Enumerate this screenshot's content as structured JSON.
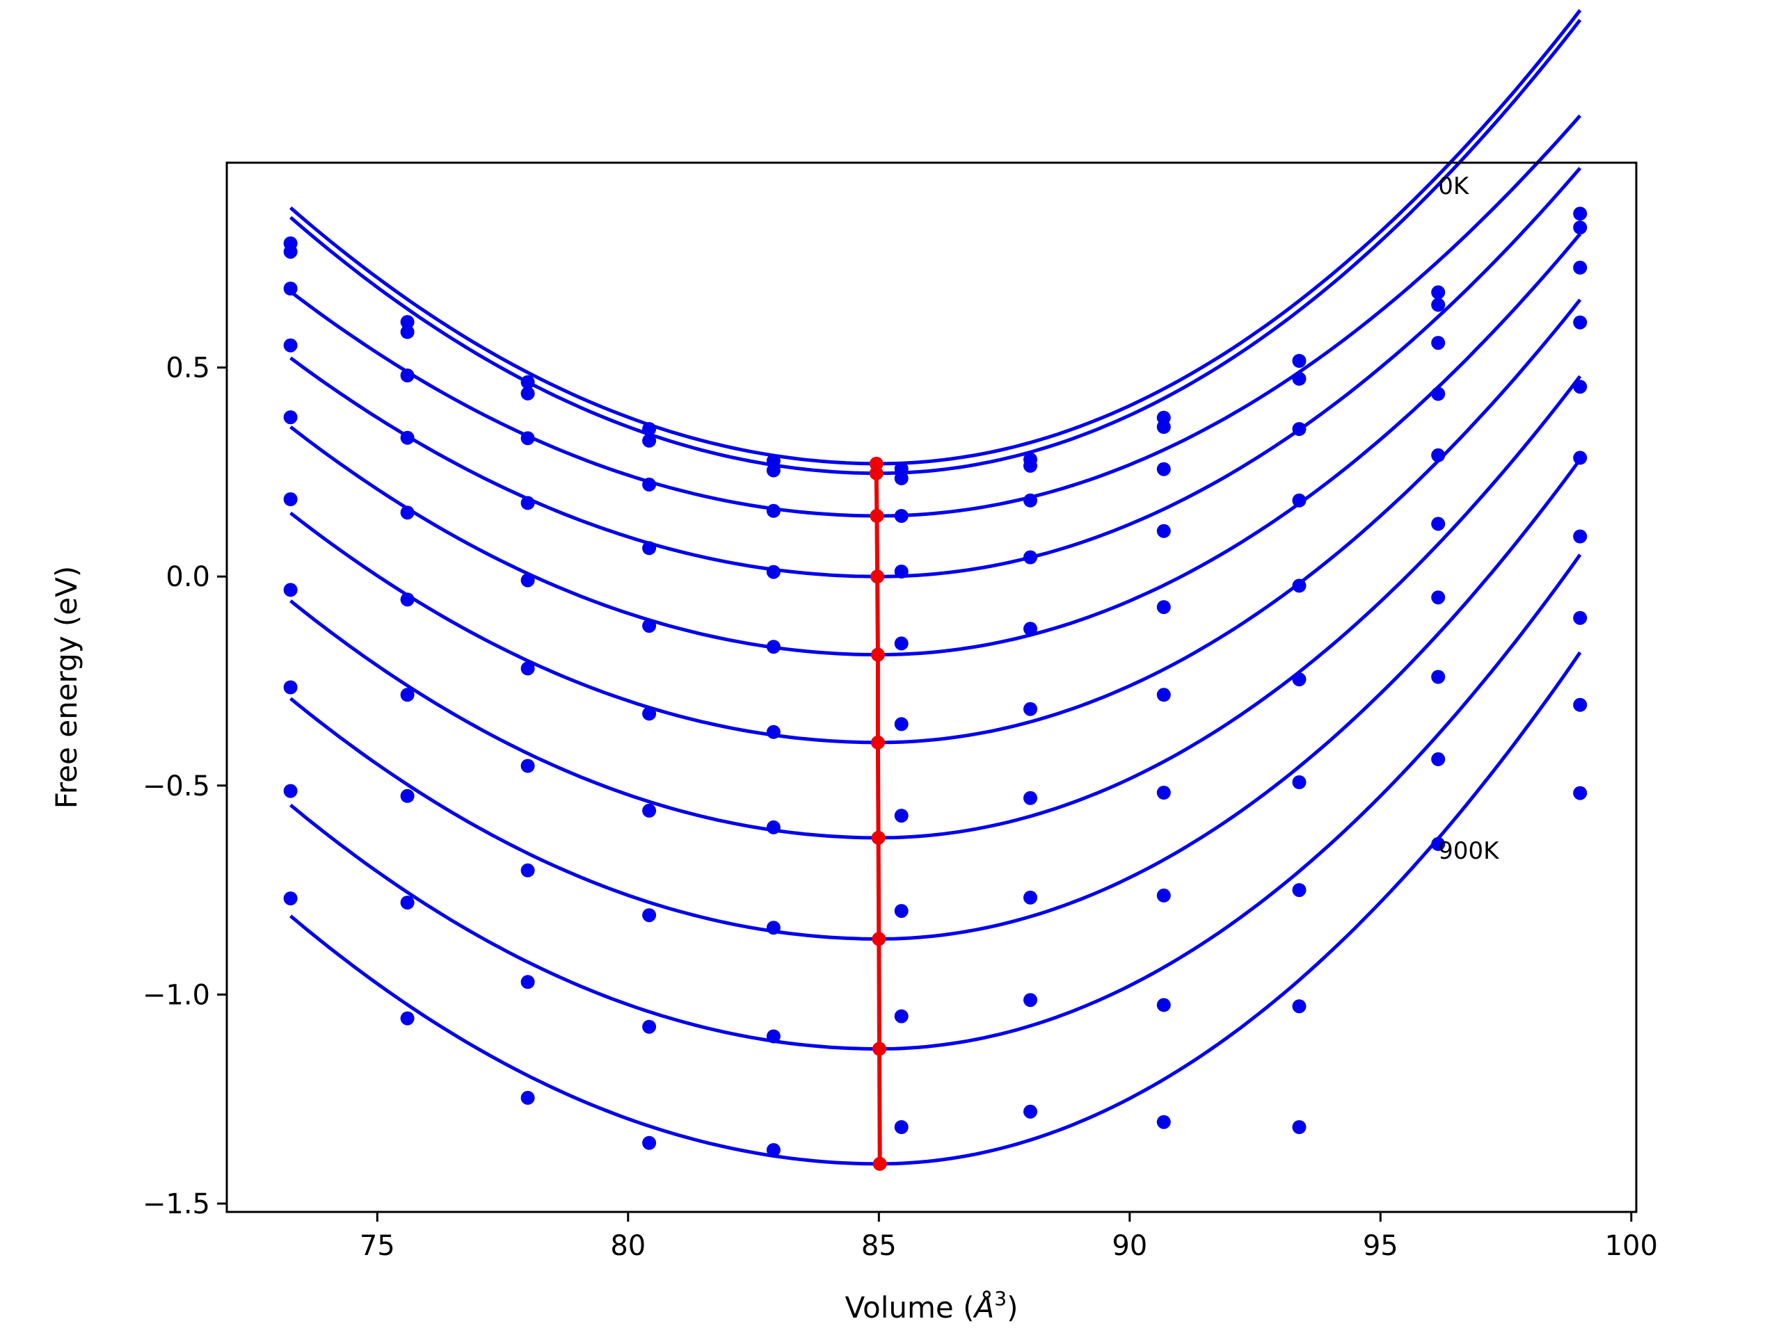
{
  "chart_data": {
    "type": "scatter",
    "title": "",
    "xlabel": "Volume ($\\AA^3$)",
    "xlabel_text": "Volume (",
    "xlabel_symbol": "Å",
    "xlabel_sup": "3",
    "xlabel_end": ")",
    "ylabel": "Free energy (eV)",
    "xlim": [
      72.0,
      100.1
    ],
    "ylim": [
      -1.52,
      0.99
    ],
    "xticks": [
      75,
      80,
      85,
      90,
      95,
      100
    ],
    "xtick_labels": [
      "75",
      "80",
      "85",
      "90",
      "95",
      "100"
    ],
    "yticks": [
      0.5,
      0.0,
      -0.5,
      -1.0,
      -1.5
    ],
    "ytick_labels": [
      "0.5",
      "0.0",
      "−0.5",
      "−1.0",
      "−1.5"
    ],
    "grid": false,
    "colors": {
      "data": "#0000ee",
      "minimum": "#ee0000"
    },
    "annotations": [
      {
        "text": "0K",
        "x": 96.15,
        "y": 0.935
      },
      {
        "text": "900K",
        "x": 96.15,
        "y": -0.655
      }
    ],
    "x": [
      73.27,
      75.6,
      78.0,
      80.42,
      82.9,
      85.45,
      88.02,
      90.68,
      93.38,
      96.15,
      98.98
    ],
    "series": [
      {
        "values": [
          0.797,
          0.609,
          0.465,
          0.353,
          0.277,
          0.258,
          0.28,
          0.38,
          0.516,
          0.68,
          0.868
        ]
      },
      {
        "values": [
          0.777,
          0.585,
          0.438,
          0.325,
          0.254,
          0.235,
          0.265,
          0.358,
          0.473,
          0.65,
          0.835
        ]
      },
      {
        "values": [
          0.689,
          0.481,
          0.331,
          0.22,
          0.157,
          0.145,
          0.182,
          0.257,
          0.353,
          0.559,
          0.739
        ]
      },
      {
        "values": [
          0.553,
          0.332,
          0.176,
          0.068,
          0.011,
          0.012,
          0.046,
          0.109,
          0.182,
          0.437,
          0.608
        ]
      },
      {
        "values": [
          0.381,
          0.153,
          -0.009,
          -0.118,
          -0.168,
          -0.16,
          -0.125,
          -0.073,
          -0.022,
          0.29,
          0.454
        ]
      },
      {
        "values": [
          0.185,
          -0.055,
          -0.22,
          -0.328,
          -0.372,
          -0.353,
          -0.317,
          -0.283,
          -0.246,
          0.126,
          0.284
        ]
      },
      {
        "values": [
          -0.032,
          -0.283,
          -0.453,
          -0.56,
          -0.6,
          -0.572,
          -0.53,
          -0.517,
          -0.492,
          -0.05,
          0.096
        ]
      },
      {
        "values": [
          -0.265,
          -0.525,
          -0.703,
          -0.81,
          -0.84,
          -0.8,
          -0.768,
          -0.763,
          -0.75,
          -0.24,
          -0.099
        ]
      },
      {
        "values": [
          -0.513,
          -0.78,
          -0.97,
          -1.077,
          -1.1,
          -1.052,
          -1.013,
          -1.025,
          -1.028,
          -0.437,
          -0.307
        ]
      },
      {
        "values": [
          -0.77,
          -1.057,
          -1.247,
          -1.355,
          -1.372,
          -1.317,
          -1.28,
          -1.305,
          -1.317,
          -0.64,
          -0.518
        ]
      }
    ],
    "fits": [
      {
        "min_v": 85.0,
        "min_e": 0.27,
        "k_left": 0.00445,
        "k_right": 0.00555,
        "v_start": 73.27,
        "v_end": 98.98
      },
      {
        "min_v": 85.0,
        "min_e": 0.247,
        "k_left": 0.00445,
        "k_right": 0.00555,
        "v_start": 73.27,
        "v_end": 98.98
      },
      {
        "min_v": 85.0,
        "min_e": 0.145,
        "k_left": 0.0039,
        "k_right": 0.0049,
        "v_start": 73.27,
        "v_end": 98.98
      },
      {
        "min_v": 85.0,
        "min_e": 0.0,
        "k_left": 0.0038,
        "k_right": 0.005,
        "v_start": 73.27,
        "v_end": 98.98
      },
      {
        "min_v": 85.0,
        "min_e": -0.187,
        "k_left": 0.00396,
        "k_right": 0.00515,
        "v_start": 73.27,
        "v_end": 98.98
      },
      {
        "min_v": 85.0,
        "min_e": -0.397,
        "k_left": 0.00399,
        "k_right": 0.00542,
        "v_start": 73.27,
        "v_end": 98.98
      },
      {
        "min_v": 85.0,
        "min_e": -0.625,
        "k_left": 0.00412,
        "k_right": 0.00565,
        "v_start": 73.27,
        "v_end": 98.98
      },
      {
        "min_v": 85.0,
        "min_e": -0.867,
        "k_left": 0.00418,
        "k_right": 0.00587,
        "v_start": 73.27,
        "v_end": 98.98
      },
      {
        "min_v": 85.0,
        "min_e": -1.13,
        "k_left": 0.00424,
        "k_right": 0.00605,
        "v_start": 73.27,
        "v_end": 98.98
      },
      {
        "min_v": 85.0,
        "min_e": -1.405,
        "k_left": 0.00431,
        "k_right": 0.00626,
        "v_start": 73.27,
        "v_end": 98.98
      }
    ],
    "minimum_line": {
      "x": [
        84.95,
        84.95,
        84.96,
        84.97,
        84.98,
        84.98,
        84.99,
        85.0,
        85.01,
        85.02
      ],
      "y": [
        0.27,
        0.247,
        0.145,
        0.0,
        -0.187,
        -0.397,
        -0.625,
        -0.867,
        -1.13,
        -1.405
      ]
    }
  }
}
